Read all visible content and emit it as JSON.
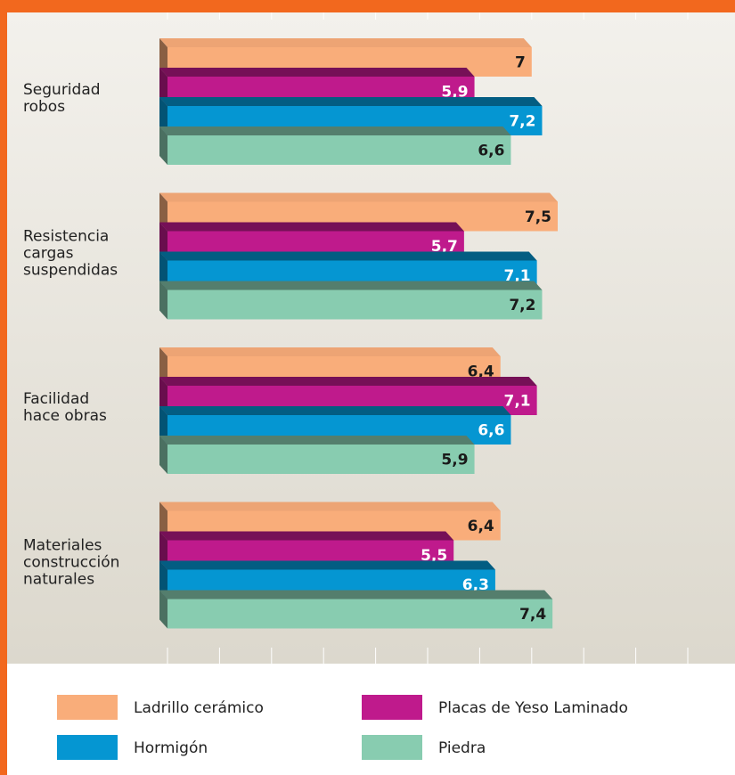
{
  "chart_data": {
    "type": "bar",
    "orientation": "horizontal",
    "categories": [
      "Seguridad\nrobos",
      "Resistencia\ncargas\nsuspendidas",
      "Facilidad\nhace obras",
      "Materiales\nconstrucción\nnaturales"
    ],
    "series": [
      {
        "name": "Ladrillo cerámico",
        "color": "#f9ad7a",
        "values": [
          7,
          7.5,
          6.4,
          6.4
        ],
        "value_labels": [
          "7",
          "7,5",
          "6,4",
          "6,4"
        ]
      },
      {
        "name": "Placas de Yeso Laminado",
        "color": "#bf1a8c",
        "values": [
          5.9,
          5.7,
          7.1,
          5.5
        ],
        "value_labels": [
          "5,9",
          "5,7",
          "7,1",
          "5,5"
        ]
      },
      {
        "name": "Hormigón",
        "color": "#0596d2",
        "values": [
          7.2,
          7.1,
          6.6,
          6.3
        ],
        "value_labels": [
          "7,2",
          "7,1",
          "6,6",
          "6,3"
        ]
      },
      {
        "name": "Piedra",
        "color": "#88ccb0",
        "values": [
          6.6,
          7.2,
          5.9,
          7.4
        ],
        "value_labels": [
          "6,6",
          "7,2",
          "5,9",
          "7,4"
        ]
      }
    ],
    "xlim": [
      0,
      10
    ],
    "xticks": [
      0,
      1,
      2,
      3,
      4,
      5,
      6,
      7,
      8,
      9,
      10
    ]
  }
}
